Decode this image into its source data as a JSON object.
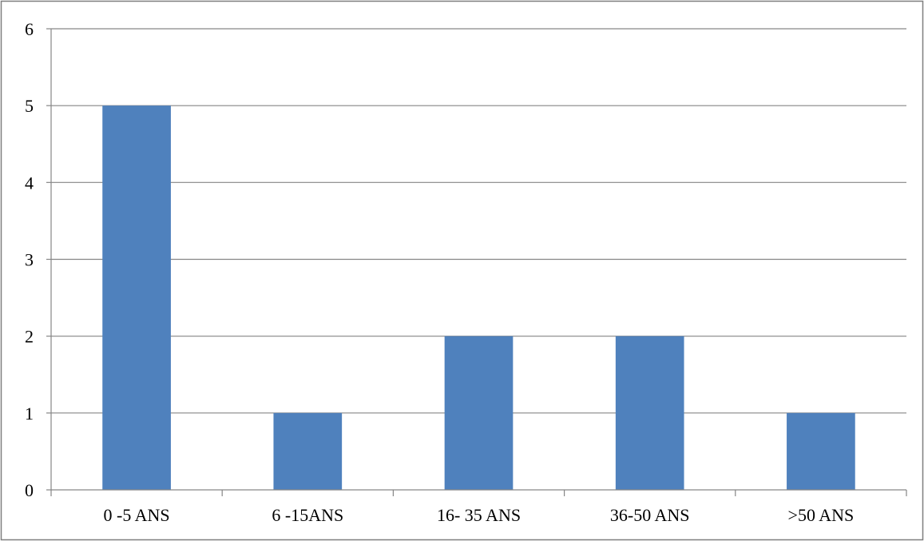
{
  "chart_data": {
    "type": "bar",
    "title": "",
    "xlabel": "",
    "ylabel": "",
    "categories": [
      "0 -5 ANS",
      "6 -15ANS",
      "16- 35 ANS",
      "36-50 ANS",
      ">50 ANS"
    ],
    "values": [
      5,
      1,
      2,
      2,
      1
    ],
    "ylim": [
      0,
      6
    ],
    "yticks": [
      0,
      1,
      2,
      3,
      4,
      5,
      6
    ],
    "grid": true,
    "legend": "none",
    "colors": {
      "bar": "#4f81bd",
      "grid": "#868686",
      "axis": "#868686",
      "frame": "#7f7f7f"
    }
  }
}
